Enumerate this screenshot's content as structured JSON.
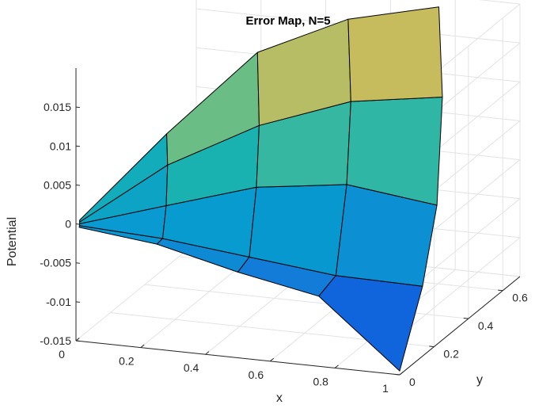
{
  "chart_data": {
    "type": "surface",
    "title": "Error Map, N=5",
    "xlabel": "x",
    "ylabel": "y",
    "zlabel": "Potential",
    "x_ticks": [
      "0",
      "0.2",
      "0.4",
      "0.6",
      "0.8",
      "1"
    ],
    "y_ticks": [
      "0",
      "0.2",
      "0.4",
      "0.6"
    ],
    "z_ticks": [
      "-0.015",
      "-0.01",
      "-0.005",
      "0",
      "0.005",
      "0.01",
      "0.015"
    ],
    "xlim": [
      0,
      1
    ],
    "ylim": [
      0,
      0.7
    ],
    "zlim": [
      -0.015,
      0.02
    ],
    "grid": true,
    "colormap": "parula",
    "colors": {
      "axis": "#262626",
      "grid": "#e3e3e3",
      "edge": "#000000"
    },
    "surface": {
      "radii": [
        0.01,
        0.25,
        0.5,
        0.75,
        1.0
      ],
      "angles_deg": [
        0,
        9,
        18,
        27,
        36
      ],
      "z": [
        [
          -0.0004,
          -0.0002,
          0.0,
          0.0002,
          0.0004
        ],
        [
          -0.0015,
          -0.0015,
          0.002,
          0.0065,
          0.0098
        ],
        [
          -0.004,
          -0.0035,
          0.004,
          0.0105,
          0.0185
        ],
        [
          -0.006,
          -0.0055,
          0.004,
          0.0125,
          0.021
        ],
        [
          -0.0145,
          -0.0065,
          0.001,
          0.012,
          0.0208
        ]
      ]
    }
  }
}
